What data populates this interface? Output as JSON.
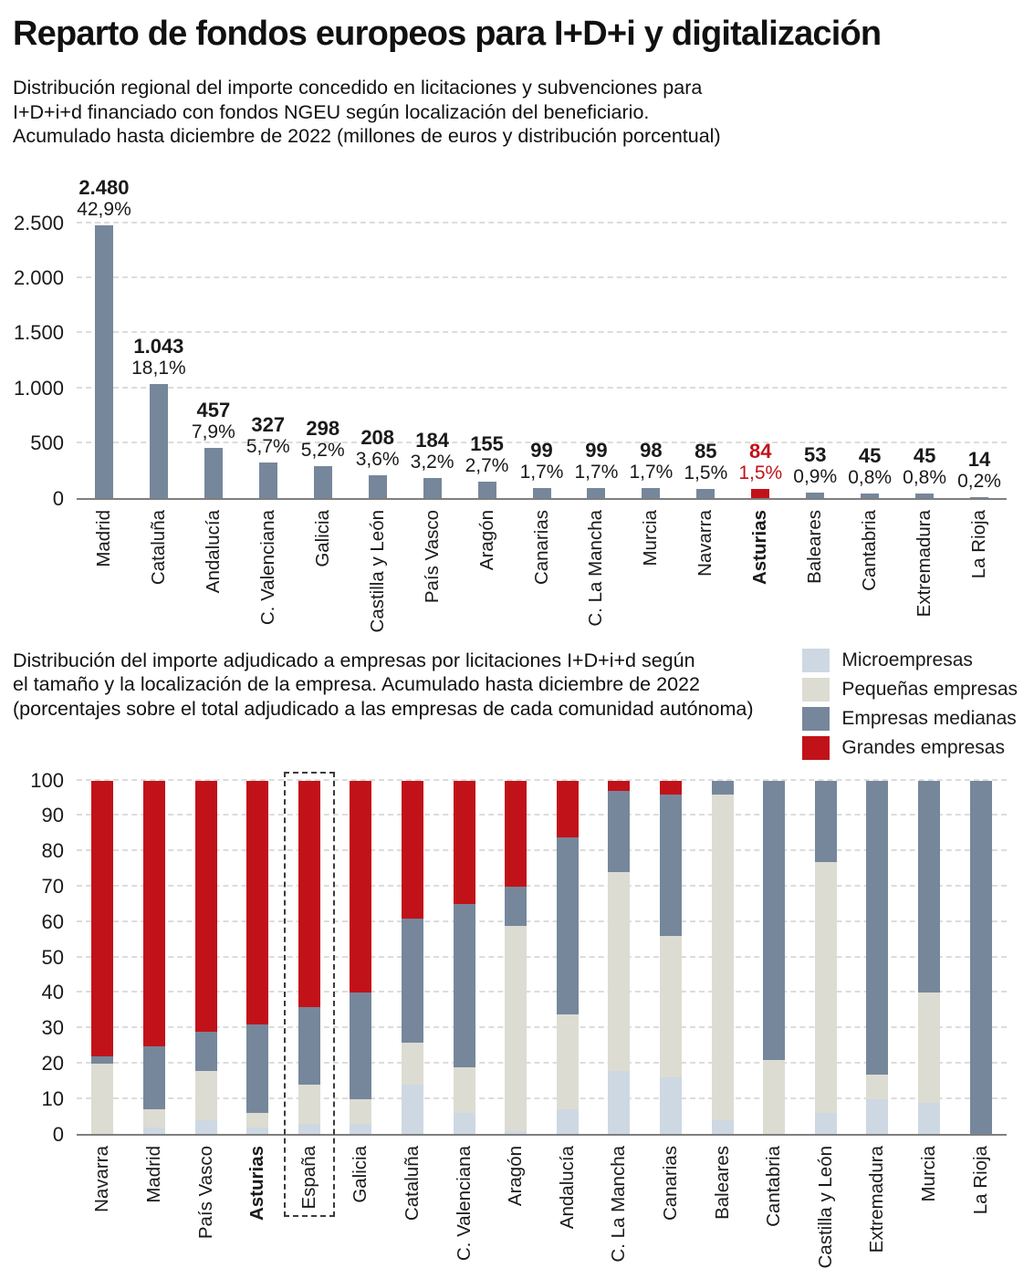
{
  "header": {
    "title": "Reparto de fondos europeos para I+D+i y digitalización"
  },
  "colors": {
    "micro": "#cdd8e3",
    "pequenas": "#dcdcd2",
    "medianas": "#76879b",
    "grandes": "#c11219",
    "grid": "#dcdcdc",
    "axis": "#7f7f7f",
    "text": "#1a1a1a"
  },
  "chart_data": [
    {
      "type": "bar",
      "subtitle_lines": [
        "Distribución regional del importe concedido en licitaciones y subvenciones para",
        "I+D+i+d financiado con fondos NGEU según localización del beneficiario.",
        "Acumulado hasta diciembre de 2022 (millones de euros y distribución porcentual)"
      ],
      "categories": [
        "Madrid",
        "Cataluña",
        "Andalucía",
        "C. Valenciana",
        "Galicia",
        "Castilla y León",
        "País Vasco",
        "Aragón",
        "Canarias",
        "C. La Mancha",
        "Murcia",
        "Navarra",
        "Asturias",
        "Baleares",
        "Cantabria",
        "Extremadura",
        "La Rioja"
      ],
      "values": [
        2480,
        1043,
        457,
        327,
        298,
        208,
        184,
        155,
        99,
        99,
        98,
        85,
        84,
        53,
        45,
        45,
        14
      ],
      "value_labels": [
        "2.480",
        "1.043",
        "457",
        "327",
        "298",
        "208",
        "184",
        "155",
        "99",
        "99",
        "98",
        "85",
        "84",
        "53",
        "45",
        "45",
        "14"
      ],
      "pct_labels": [
        "42,9%",
        "18,1%",
        "7,9%",
        "5,7%",
        "5,2%",
        "3,6%",
        "3,2%",
        "2,7%",
        "1,7%",
        "1,7%",
        "1,7%",
        "1,5%",
        "1,5%",
        "0,9%",
        "0,8%",
        "0,8%",
        "0,2%"
      ],
      "highlight_category": "Asturias",
      "ylabel": "",
      "xlabel": "",
      "ylim": [
        0,
        2500
      ],
      "y_ticks": [
        0,
        500,
        1000,
        1500,
        2000,
        2500
      ],
      "y_tick_labels": [
        "0",
        "500",
        "1.000",
        "1.500",
        "2.000",
        "2.500"
      ],
      "grid": "horizontal-dashed",
      "legend_position": "none"
    },
    {
      "type": "stacked-bar",
      "subtitle_lines": [
        "Distribución del importe adjudicado a empresas por licitaciones I+D+i+d según",
        "el tamaño y la localización de la empresa. Acumulado hasta diciembre de 2022",
        "(porcentajes sobre el total adjudicado a las empresas de cada comunidad autónoma)"
      ],
      "categories": [
        "Navarra",
        "Madrid",
        "País Vasco",
        "Asturias",
        "España",
        "Galicia",
        "Cataluña",
        "C. Valenciana",
        "Aragón",
        "Andalucía",
        "C. La Mancha",
        "Canarias",
        "Baleares",
        "Cantabria",
        "Castilla y León",
        "Extremadura",
        "Murcia",
        "La Rioja"
      ],
      "series": [
        {
          "name": "Microempresas",
          "key": "micro",
          "values": [
            0,
            2,
            4,
            2,
            3,
            3,
            14,
            6,
            1,
            7,
            18,
            16,
            4,
            0,
            6,
            10,
            9,
            0
          ]
        },
        {
          "name": "Pequeñas empresas",
          "key": "pequenas",
          "values": [
            20,
            5,
            14,
            4,
            11,
            7,
            12,
            13,
            58,
            27,
            56,
            40,
            92,
            21,
            71,
            7,
            31,
            0
          ]
        },
        {
          "name": "Empresas medianas",
          "key": "medianas",
          "values": [
            2,
            18,
            11,
            25,
            22,
            30,
            35,
            46,
            11,
            50,
            23,
            40,
            4,
            79,
            23,
            83,
            60,
            100
          ]
        },
        {
          "name": "Grandes empresas",
          "key": "grandes",
          "values": [
            78,
            75,
            71,
            69,
            64,
            60,
            39,
            35,
            30,
            16,
            3,
            4,
            0,
            0,
            0,
            0,
            0,
            0
          ]
        }
      ],
      "highlight_category": "Asturias",
      "boxed_category": "España",
      "ylim": [
        0,
        100
      ],
      "y_ticks": [
        0,
        10,
        20,
        30,
        40,
        50,
        60,
        70,
        80,
        90,
        100
      ],
      "grid": "horizontal-dashed",
      "legend_position": "top-right"
    }
  ]
}
